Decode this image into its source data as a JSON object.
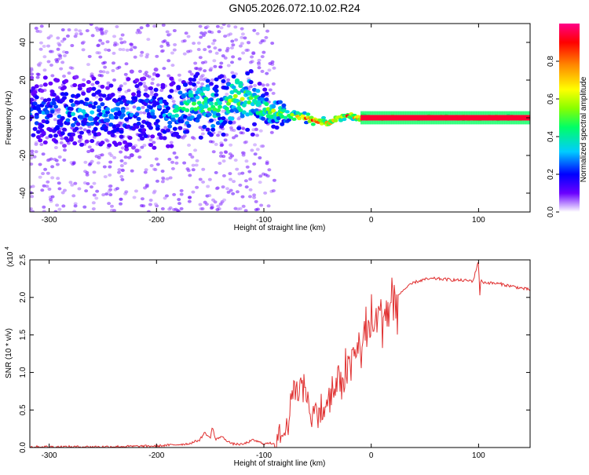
{
  "title": "GN05.2026.072.10.02.R24",
  "chart_data": [
    {
      "type": "heatmap",
      "xlabel": "Height of straight line (km)",
      "ylabel": "Frequency (Hz)",
      "xlim": [
        -318,
        148
      ],
      "ylim": [
        -50,
        50
      ],
      "xticks": [
        -300,
        -200,
        -100,
        0,
        100
      ],
      "yticks": [
        -40,
        -20,
        0,
        20,
        40
      ],
      "colorbar": {
        "label": "Normalized spectral amplitude",
        "range": [
          0,
          1
        ],
        "ticks": [
          0.0,
          0.2,
          0.4,
          0.6,
          0.8
        ],
        "colormap": [
          "#ffffff",
          "#6a00ff",
          "#0000ff",
          "#00ccff",
          "#00ff66",
          "#88ff00",
          "#ffff00",
          "#ff8800",
          "#ff0000",
          "#ff0088"
        ]
      },
      "ridge": {
        "x": [
          -318,
          -280,
          -240,
          -200,
          -180,
          -160,
          -140,
          -125,
          -115,
          -100,
          -80,
          -70,
          -60,
          -50,
          -40,
          -30,
          -20,
          -10,
          0,
          50,
          100,
          148
        ],
        "center_hz": [
          2,
          3,
          2,
          3,
          4,
          8,
          5,
          12,
          10,
          5,
          2,
          1,
          0,
          -2,
          -3,
          0,
          1,
          0,
          0,
          0,
          0,
          0
        ],
        "amplitude": [
          0.25,
          0.3,
          0.28,
          0.3,
          0.35,
          0.45,
          0.4,
          0.55,
          0.5,
          0.45,
          0.55,
          0.6,
          0.75,
          0.8,
          0.7,
          0.72,
          0.78,
          0.82,
          0.9,
          0.95,
          0.95,
          0.95
        ],
        "spread_hz": [
          40,
          40,
          40,
          40,
          42,
          38,
          38,
          30,
          30,
          25,
          10,
          6,
          5,
          4,
          4,
          3,
          3,
          3,
          2,
          2,
          2,
          2
        ]
      }
    },
    {
      "type": "line",
      "xlabel": "Height of straight line (km)",
      "ylabel": "SNR (10 * v/v)",
      "y_multiplier": "(x10",
      "y_multiplier_exp": "4",
      "xlim": [
        -318,
        148
      ],
      "ylim": [
        0,
        2.5
      ],
      "xticks": [
        -300,
        -200,
        -100,
        0,
        100
      ],
      "yticks": [
        0.0,
        0.5,
        1.0,
        1.5,
        2.0,
        2.5
      ],
      "series": [
        {
          "name": "SNR",
          "color": "#e03030",
          "x": [
            -318,
            -250,
            -200,
            -170,
            -160,
            -155,
            -150,
            -148,
            -145,
            -140,
            -130,
            -120,
            -110,
            -100,
            -90,
            -80,
            -75,
            -70,
            -65,
            -60,
            -55,
            -50,
            -45,
            -40,
            -35,
            -30,
            -25,
            -20,
            -15,
            -10,
            -5,
            0,
            5,
            10,
            15,
            20,
            30,
            40,
            50,
            60,
            80,
            95,
            100,
            101,
            102,
            105,
            120,
            148
          ],
          "y": [
            0.01,
            0.01,
            0.02,
            0.05,
            0.1,
            0.2,
            0.12,
            0.28,
            0.1,
            0.15,
            0.05,
            0.04,
            0.1,
            0.05,
            0.06,
            0.2,
            0.6,
            0.8,
            0.9,
            0.7,
            0.35,
            0.55,
            0.45,
            0.6,
            0.75,
            0.85,
            1.0,
            1.1,
            1.25,
            1.35,
            1.5,
            1.62,
            1.7,
            1.8,
            1.85,
            1.95,
            2.1,
            2.2,
            2.24,
            2.25,
            2.23,
            2.22,
            2.5,
            2.0,
            2.22,
            2.2,
            2.18,
            2.1
          ]
        }
      ]
    }
  ]
}
